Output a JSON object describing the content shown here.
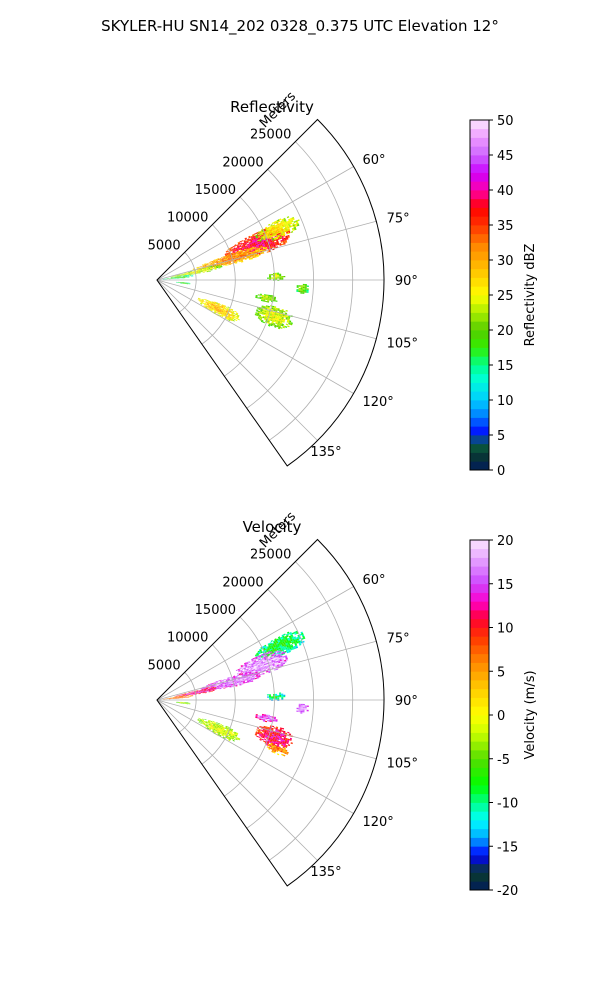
{
  "suptitle": "SKYLER-HU  SN14_202  0328_0.375 UTC Elevation 12°",
  "colors": {
    "grid": "#b0b0b0",
    "frame": "#000000"
  },
  "chart_data": [
    {
      "type": "heatmap",
      "name": "reflectivity",
      "title": "Reflectivity",
      "range_label": "Meters",
      "range_ticks": [
        "5000",
        "10000",
        "15000",
        "20000",
        "25000"
      ],
      "range_values": [
        5000,
        10000,
        15000,
        20000,
        25000
      ],
      "range_max": 29000,
      "azimuth_range": [
        45,
        145
      ],
      "azimuth_ticks": [
        "60°",
        "75°",
        "90°",
        "105°",
        "120°",
        "135°"
      ],
      "azimuth_values": [
        60,
        75,
        90,
        105,
        120,
        135
      ],
      "colorbar": {
        "label": "Reflectivity dBZ",
        "min": 0,
        "max": 50,
        "ticks": [
          "0",
          "5",
          "10",
          "15",
          "20",
          "25",
          "30",
          "35",
          "40",
          "45",
          "50"
        ],
        "tick_values": [
          0,
          5,
          10,
          15,
          20,
          25,
          30,
          35,
          40,
          45,
          50
        ]
      },
      "echoes": [
        {
          "az": 70,
          "r": 13500,
          "daz": 6,
          "dr": 4500,
          "value": 34
        },
        {
          "az": 67,
          "r": 16500,
          "daz": 4,
          "dr": 3000,
          "value": 22
        },
        {
          "az": 74,
          "r": 9500,
          "daz": 4,
          "dr": 5000,
          "value": 27
        },
        {
          "az": 78,
          "r": 5000,
          "daz": 3,
          "dr": 3500,
          "value": 20
        },
        {
          "az": 83,
          "r": 2500,
          "daz": 3,
          "dr": 2000,
          "value": 14
        },
        {
          "az": 88,
          "r": 15000,
          "daz": 2,
          "dr": 1200,
          "value": 18
        },
        {
          "az": 96,
          "r": 3200,
          "daz": 2,
          "dr": 1000,
          "value": 14
        },
        {
          "az": 115,
          "r": 8500,
          "daz": 5,
          "dr": 3000,
          "value": 24
        },
        {
          "az": 107,
          "r": 15500,
          "daz": 5,
          "dr": 2500,
          "value": 20
        },
        {
          "az": 99,
          "r": 14000,
          "daz": 2,
          "dr": 1500,
          "value": 18
        },
        {
          "az": 93,
          "r": 18500,
          "daz": 2,
          "dr": 900,
          "value": 16
        }
      ]
    },
    {
      "type": "heatmap",
      "name": "velocity",
      "title": "Velocity",
      "range_label": "Meters",
      "range_ticks": [
        "5000",
        "10000",
        "15000",
        "20000",
        "25000"
      ],
      "range_values": [
        5000,
        10000,
        15000,
        20000,
        25000
      ],
      "range_max": 29000,
      "azimuth_range": [
        45,
        145
      ],
      "azimuth_ticks": [
        "60°",
        "75°",
        "90°",
        "105°",
        "120°",
        "135°"
      ],
      "azimuth_values": [
        60,
        75,
        90,
        105,
        120,
        135
      ],
      "colorbar": {
        "label": "Velocity (m/s)",
        "min": -20,
        "max": 20,
        "ticks": [
          "-20",
          "-15",
          "-10",
          "-5",
          "0",
          "5",
          "10",
          "15",
          "20"
        ],
        "tick_values": [
          -20,
          -15,
          -10,
          -5,
          0,
          5,
          10,
          15,
          20
        ]
      },
      "echoes": [
        {
          "az": 66,
          "r": 17000,
          "daz": 4,
          "dr": 3500,
          "value": -11
        },
        {
          "az": 71,
          "r": 14000,
          "daz": 5,
          "dr": 3500,
          "value": 15
        },
        {
          "az": 76,
          "r": 9500,
          "daz": 4,
          "dr": 4000,
          "value": 14
        },
        {
          "az": 79,
          "r": 5000,
          "daz": 3,
          "dr": 3000,
          "value": 10
        },
        {
          "az": 83,
          "r": 2500,
          "daz": 3,
          "dr": 2000,
          "value": 5
        },
        {
          "az": 88,
          "r": 15000,
          "daz": 2,
          "dr": 1200,
          "value": -12
        },
        {
          "az": 96,
          "r": 3200,
          "daz": 2,
          "dr": 1000,
          "value": -5
        },
        {
          "az": 115,
          "r": 8500,
          "daz": 5,
          "dr": 3000,
          "value": -4
        },
        {
          "az": 107,
          "r": 15500,
          "daz": 5,
          "dr": 2500,
          "value": 9
        },
        {
          "az": 99,
          "r": 14000,
          "daz": 2,
          "dr": 1500,
          "value": 13
        },
        {
          "az": 112,
          "r": 16500,
          "daz": 2,
          "dr": 1500,
          "value": 3
        },
        {
          "az": 93,
          "r": 18500,
          "daz": 2,
          "dr": 900,
          "value": 15
        }
      ]
    }
  ]
}
